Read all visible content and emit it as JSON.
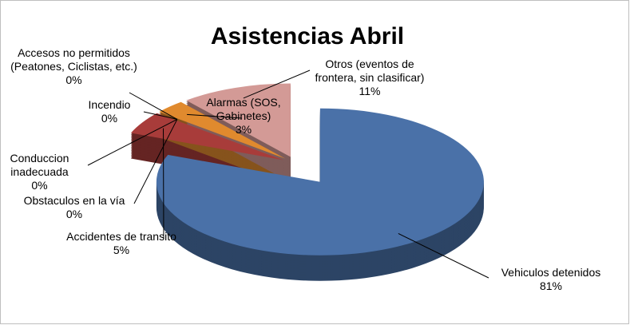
{
  "chart_data": {
    "type": "pie",
    "title": "Asistencias Abril",
    "categories": [
      "Vehiculos detenidos",
      "Accidentes de transito",
      "Obstaculos en la vía",
      "Conduccion inadecuada",
      "Incendio",
      "Accesos no permitidos (Peatones, Ciclistas, etc.)",
      "Alarmas (SOS, Gabinetes)",
      "Otros (eventos de frontera, sin clasificar)"
    ],
    "values": [
      81,
      5,
      0,
      0,
      0,
      0,
      3,
      11
    ],
    "value_labels": [
      "81%",
      "5%",
      "0%",
      "0%",
      "0%",
      "0%",
      "3%",
      "11%"
    ],
    "colors": [
      "#4a71a8",
      "#a83c3a",
      "#86a447",
      "#6e528f",
      "#3f93aa",
      "#5b7fb5",
      "#e08a2e",
      "#d39a96"
    ]
  }
}
